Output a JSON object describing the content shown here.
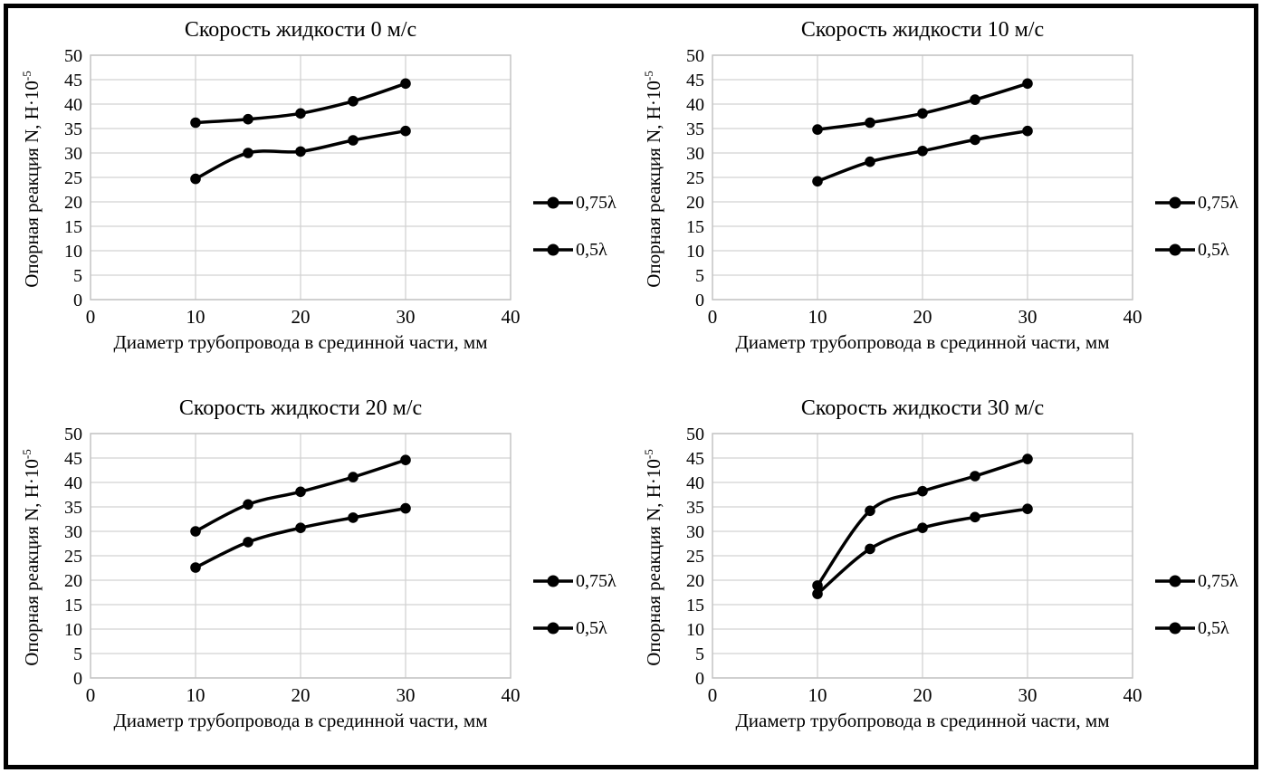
{
  "figure": {
    "background": "#ffffff",
    "frame_color": "#000000",
    "series_color": "#000000",
    "gridline_color": "#d2d2d2",
    "plot_border_color": "#c4c4c4",
    "text_color": "#000000"
  },
  "chart_data": [
    {
      "type": "line",
      "title": "Скорость жидкости 0 м/с",
      "xlabel": "Диаметр трубопровода в срединной части, мм",
      "ylabel_base": "Опорная реакция N, Н·10",
      "ylabel_exponent": "-5",
      "x": [
        10,
        15,
        20,
        25,
        30
      ],
      "series": [
        {
          "name": "0,75λ",
          "values": [
            36.2,
            36.9,
            38.1,
            40.6,
            44.2
          ]
        },
        {
          "name": "0,5λ",
          "values": [
            24.7,
            30.0,
            30.3,
            32.6,
            34.5
          ]
        }
      ],
      "xlim": [
        0,
        40
      ],
      "ylim": [
        0,
        50
      ],
      "xticks": [
        0,
        10,
        20,
        30,
        40
      ],
      "yticks": [
        0,
        5,
        10,
        15,
        20,
        25,
        30,
        35,
        40,
        45,
        50
      ],
      "grid": true,
      "legend_position": "right"
    },
    {
      "type": "line",
      "title": "Скорость жидкости 10 м/с",
      "xlabel": "Диаметр трубопровода в срединной части, мм",
      "ylabel_base": "Опорная реакция N, Н·10",
      "ylabel_exponent": "-5",
      "x": [
        10,
        15,
        20,
        25,
        30
      ],
      "series": [
        {
          "name": "0,75λ",
          "values": [
            34.8,
            36.2,
            38.1,
            40.9,
            44.2
          ]
        },
        {
          "name": "0,5λ",
          "values": [
            24.2,
            28.2,
            30.4,
            32.7,
            34.5
          ]
        }
      ],
      "xlim": [
        0,
        40
      ],
      "ylim": [
        0,
        50
      ],
      "xticks": [
        0,
        10,
        20,
        30,
        40
      ],
      "yticks": [
        0,
        5,
        10,
        15,
        20,
        25,
        30,
        35,
        40,
        45,
        50
      ],
      "grid": true,
      "legend_position": "right"
    },
    {
      "type": "line",
      "title": "Скорость жидкости 20 м/с",
      "xlabel": "Диаметр трубопровода в срединной части, мм",
      "ylabel_base": "Опорная реакция N, Н·10",
      "ylabel_exponent": "-5",
      "x": [
        10,
        15,
        20,
        25,
        30
      ],
      "series": [
        {
          "name": "0,75λ",
          "values": [
            30.0,
            35.5,
            38.1,
            41.1,
            44.6
          ]
        },
        {
          "name": "0,5λ",
          "values": [
            22.6,
            27.8,
            30.7,
            32.8,
            34.7
          ]
        }
      ],
      "xlim": [
        0,
        40
      ],
      "ylim": [
        0,
        50
      ],
      "xticks": [
        0,
        10,
        20,
        30,
        40
      ],
      "yticks": [
        0,
        5,
        10,
        15,
        20,
        25,
        30,
        35,
        40,
        45,
        50
      ],
      "grid": true,
      "legend_position": "right"
    },
    {
      "type": "line",
      "title": "Скорость жидкости 30 м/с",
      "xlabel": "Диаметр трубопровода в срединной части, мм",
      "ylabel_base": "Опорная реакция N, Н·10",
      "ylabel_exponent": "-5",
      "x": [
        10,
        15,
        20,
        25,
        30
      ],
      "series": [
        {
          "name": "0,75λ",
          "values": [
            18.9,
            34.2,
            38.2,
            41.3,
            44.8
          ]
        },
        {
          "name": "0,5λ",
          "values": [
            17.2,
            26.4,
            30.7,
            32.9,
            34.6
          ]
        }
      ],
      "xlim": [
        0,
        40
      ],
      "ylim": [
        0,
        50
      ],
      "xticks": [
        0,
        10,
        20,
        30,
        40
      ],
      "yticks": [
        0,
        5,
        10,
        15,
        20,
        25,
        30,
        35,
        40,
        45,
        50
      ],
      "grid": true,
      "legend_position": "right"
    }
  ]
}
